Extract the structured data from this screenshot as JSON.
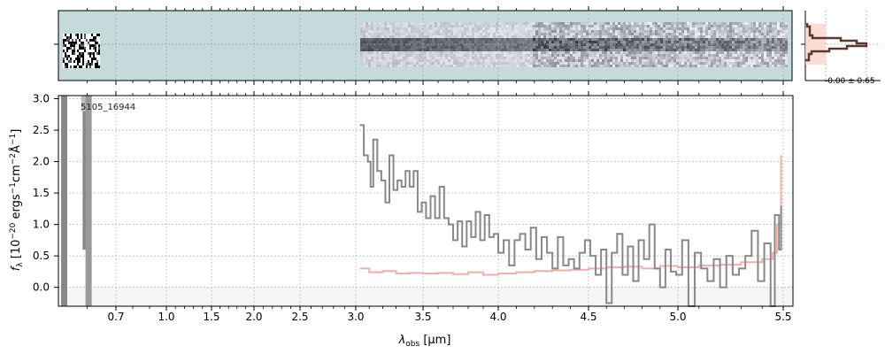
{
  "chart_data": {
    "type": "line",
    "object_label": "5105_16944",
    "xlabel_main": "λ",
    "xlabel_sub": "obs",
    "xlabel_unit": "[μm]",
    "ylabel": "f_λ [10^-20 erg s^-1 cm^-2 Å^-1]",
    "ylabel_parts": {
      "f": "f",
      "lam": "λ",
      "a": " [10",
      "e1": "−20",
      "b": " ergs",
      "e2": "−1",
      "c": "cm",
      "e3": "−2",
      "d": "Å",
      "e4": "−1",
      "e": "]"
    },
    "xlim": [
      0.5,
      5.52
    ],
    "ylim": [
      -0.3,
      3.05
    ],
    "xticks": [
      "0.7",
      "1.0",
      "1.5",
      "2.0",
      "2.5",
      "3.0",
      "3.5",
      "4.0",
      "4.5",
      "5.0",
      "5.5"
    ],
    "yticks": [
      "0.0",
      "0.5",
      "1.0",
      "1.5",
      "2.0",
      "2.5",
      "3.0"
    ],
    "grid": true,
    "hist_label": "-0.00 ± 0.65",
    "colors": {
      "flux": "#888888",
      "error": "#f4a3a3",
      "panel2d": "#c5dadb",
      "hist_fill": "#fcd5c8",
      "hist_line": "#5a3a30"
    },
    "short_wl_bars": [
      {
        "x": 0.52,
        "y0": -0.3,
        "y1": 3.05,
        "color": "#888888"
      },
      {
        "x": 0.59,
        "y0": 2.8,
        "y1": 3.05,
        "color": "#bbbbbb"
      },
      {
        "x": 0.595,
        "y0": 0.6,
        "y1": 2.8,
        "color": "#888888"
      },
      {
        "x": 0.605,
        "y0": -0.3,
        "y1": 3.05,
        "color": "#999999"
      }
    ],
    "series": [
      {
        "name": "flux",
        "x": [
          3.03,
          3.06,
          3.09,
          3.11,
          3.13,
          3.16,
          3.19,
          3.22,
          3.25,
          3.28,
          3.31,
          3.34,
          3.37,
          3.4,
          3.43,
          3.46,
          3.49,
          3.52,
          3.55,
          3.58,
          3.61,
          3.64,
          3.67,
          3.7,
          3.73,
          3.76,
          3.79,
          3.82,
          3.85,
          3.88,
          3.91,
          3.94,
          3.97,
          4.0,
          4.03,
          4.06,
          4.09,
          4.12,
          4.15,
          4.18,
          4.21,
          4.24,
          4.27,
          4.3,
          4.33,
          4.36,
          4.39,
          4.42,
          4.45,
          4.48,
          4.51,
          4.54,
          4.57,
          4.6,
          4.63,
          4.66,
          4.69,
          4.72,
          4.75,
          4.78,
          4.81,
          4.84,
          4.87,
          4.9,
          4.93,
          4.96,
          4.99,
          5.02,
          5.05,
          5.08,
          5.11,
          5.14,
          5.17,
          5.2,
          5.23,
          5.26,
          5.29,
          5.32,
          5.35,
          5.38,
          5.41,
          5.44,
          5.46,
          5.48,
          5.49
        ],
        "y": [
          2.58,
          2.1,
          2.0,
          1.6,
          2.35,
          1.85,
          1.7,
          1.35,
          2.1,
          1.55,
          1.7,
          1.6,
          1.85,
          1.6,
          1.85,
          1.2,
          1.35,
          1.1,
          1.45,
          1.1,
          1.6,
          1.1,
          1.0,
          0.75,
          1.05,
          0.65,
          1.05,
          0.8,
          1.2,
          0.75,
          1.15,
          0.8,
          0.85,
          0.55,
          0.75,
          0.35,
          0.75,
          0.85,
          0.6,
          0.95,
          0.45,
          0.8,
          0.55,
          0.3,
          0.8,
          0.35,
          0.45,
          0.3,
          0.55,
          0.75,
          0.5,
          0.2,
          0.6,
          -0.25,
          0.55,
          0.85,
          0.2,
          0.65,
          0.1,
          0.75,
          0.45,
          1.0,
          0.3,
          0.0,
          0.6,
          0.25,
          0.2,
          0.75,
          -0.3,
          0.55,
          0.3,
          0.1,
          0.45,
          0.0,
          0.5,
          0.2,
          0.3,
          0.5,
          0.9,
          0.1,
          0.7,
          -0.3,
          1.15,
          0.6,
          1.3
        ]
      },
      {
        "name": "error",
        "x": [
          3.03,
          3.1,
          3.2,
          3.3,
          3.4,
          3.5,
          3.6,
          3.7,
          3.8,
          3.9,
          4.0,
          4.1,
          4.2,
          4.3,
          4.4,
          4.5,
          4.6,
          4.7,
          4.8,
          4.9,
          5.0,
          5.1,
          5.2,
          5.3,
          5.4,
          5.45,
          5.47,
          5.49
        ],
        "y": [
          0.3,
          0.24,
          0.26,
          0.22,
          0.23,
          0.22,
          0.23,
          0.21,
          0.24,
          0.2,
          0.22,
          0.24,
          0.26,
          0.27,
          0.28,
          0.3,
          0.32,
          0.33,
          0.3,
          0.34,
          0.32,
          0.35,
          0.36,
          0.4,
          0.45,
          0.55,
          1.0,
          2.1
        ]
      }
    ]
  }
}
